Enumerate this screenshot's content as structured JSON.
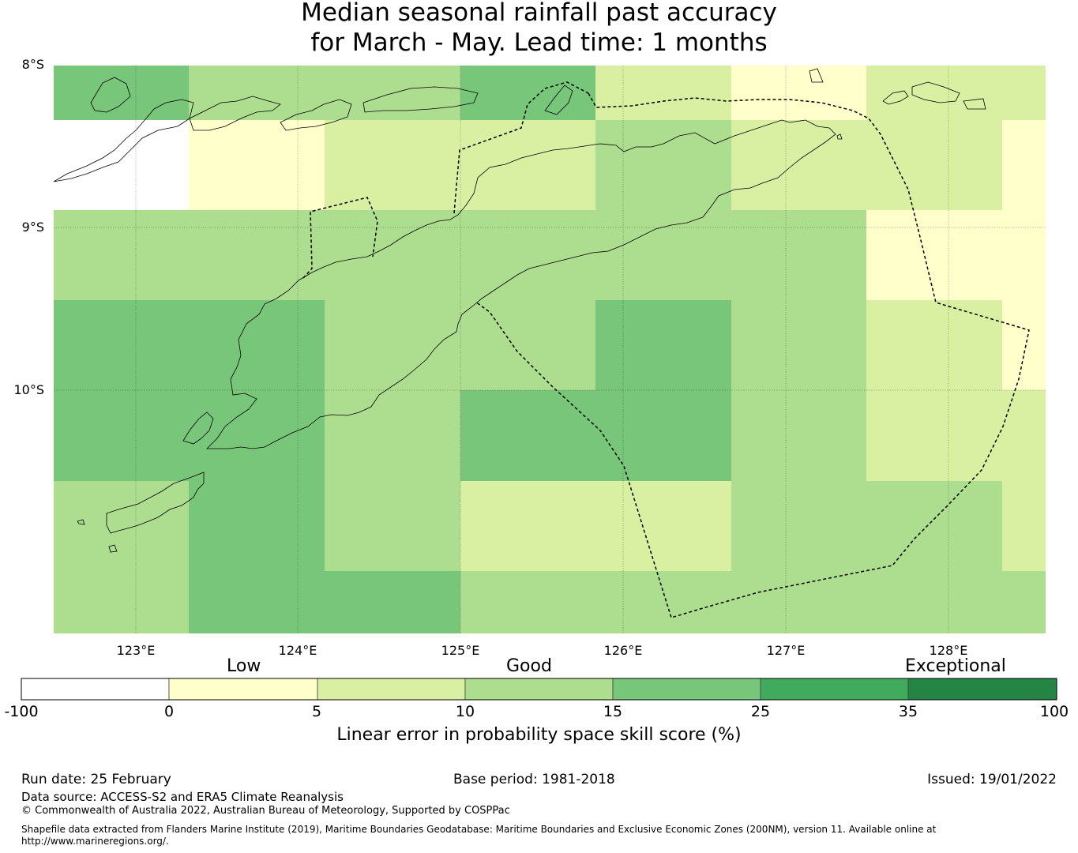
{
  "title": {
    "line1": "Median seasonal rainfall past accuracy",
    "line2": "for March - May. Lead time: 1 months"
  },
  "map": {
    "lat_labels": [
      "8°S",
      "9°S",
      "10°S"
    ],
    "lon_labels": [
      "123°E",
      "124°E",
      "125°E",
      "126°E",
      "127°E",
      "128°E"
    ],
    "lat_range": [
      -11.5,
      -8
    ],
    "lon_range": [
      122.5,
      128.6
    ],
    "cell_colors_note": "grid cells colored by skill-score category",
    "categories": {
      "below0": "#ffffff",
      "c0_5": "#ffffcc",
      "c5_10": "#d9f0a3",
      "c10_15": "#addd8e",
      "c15_25": "#78c679",
      "c25_35": "#41ab5d",
      "c35_100": "#238443"
    },
    "grid_rows": [
      [
        "c15_25",
        "c10_15",
        "c10_15",
        "c15_25",
        "c5_10",
        "c0_5",
        "c5_10",
        "c5_10"
      ],
      [
        "below0",
        "c0_5",
        "c5_10",
        "c5_10",
        "c10_15",
        "c5_10",
        "c5_10",
        "c0_5"
      ],
      [
        "c10_15",
        "c10_15",
        "c10_15",
        "c10_15",
        "c10_15",
        "c10_15",
        "c0_5",
        "c0_5"
      ],
      [
        "c15_25",
        "c15_25",
        "c10_15",
        "c10_15",
        "c15_25",
        "c10_15",
        "c5_10",
        "c0_5"
      ],
      [
        "c15_25",
        "c15_25",
        "c10_15",
        "c15_25",
        "c15_25",
        "c10_15",
        "c5_10",
        "c5_10"
      ],
      [
        "c10_15",
        "c15_25",
        "c10_15",
        "c5_10",
        "c5_10",
        "c10_15",
        "c10_15",
        "c5_10"
      ],
      [
        "c10_15",
        "c15_25",
        "c15_25",
        "c10_15",
        "c10_15",
        "c10_15",
        "c10_15",
        "c10_15"
      ]
    ]
  },
  "colorbar": {
    "category_labels": {
      "low": "Low",
      "good": "Good",
      "exceptional": "Exceptional"
    },
    "ticks": [
      "-100",
      "0",
      "5",
      "10",
      "15",
      "25",
      "35",
      "100"
    ],
    "colors": [
      "#ffffff",
      "#ffffcc",
      "#d9f0a3",
      "#addd8e",
      "#78c679",
      "#41ab5d",
      "#238443"
    ],
    "title": "Linear error in probability space skill score (%)"
  },
  "footer": {
    "run_date": "Run date: 25 February",
    "base_period": "Base period: 1981-2018",
    "issued": "Issued: 19/01/2022",
    "data_source": "Data source: ACCESS-S2 and ERA5 Climate Reanalysis",
    "copyright": "© Commonwealth of Australia 2022, Australian Bureau of Meteorology, Supported by COSPPac",
    "shapefile_line1": "Shapefile data extracted from Flanders Marine Institute (2019), Maritime Boundaries Geodatabase: Maritime Boundaries and Exclusive Economic Zones (200NM), version 11. Available online at",
    "shapefile_line2": "http://www.marineregions.org/."
  }
}
